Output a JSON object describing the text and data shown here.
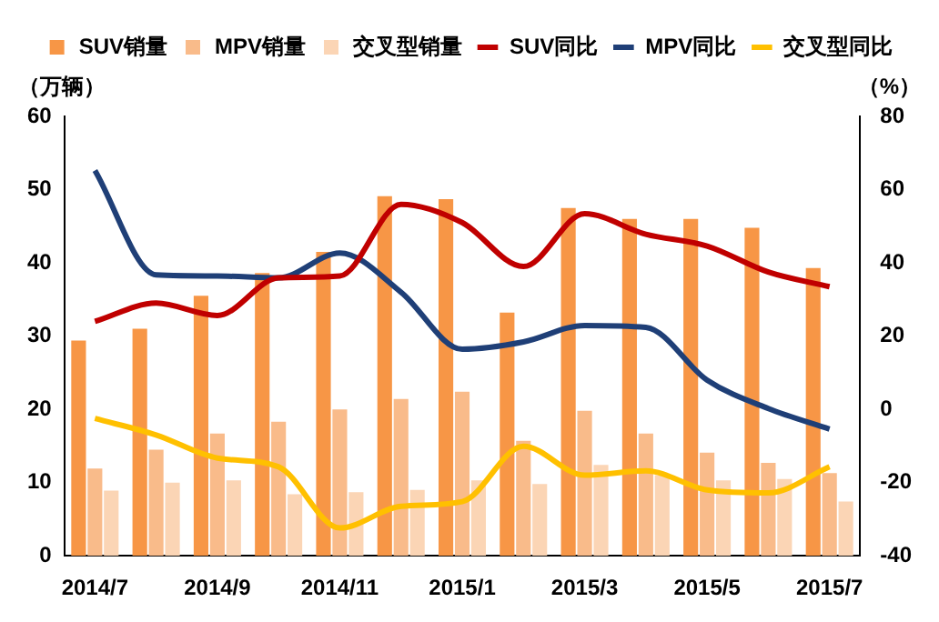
{
  "chart_data": {
    "type": "bar",
    "ylabel": "（万辆）",
    "y2label": "（%）",
    "categories": [
      "2014/7",
      null,
      "2014/9",
      null,
      "2014/11",
      null,
      "2015/1",
      null,
      "2015/3",
      null,
      "2015/5",
      null,
      "2015/7"
    ],
    "series": [
      {
        "name": "SUV销量",
        "color": "#f79646",
        "values": [
          29.4,
          31,
          35.5,
          38.6,
          41.5,
          49.1,
          48.7,
          33.2,
          47.5,
          46,
          46,
          44.8,
          39.3
        ]
      },
      {
        "name": "MPV销量",
        "color": "#f9bb8a",
        "values": [
          11.9,
          14.5,
          16.7,
          18.3,
          20,
          21.4,
          22.4,
          15.7,
          19.8,
          16.7,
          14.1,
          12.7,
          11.3
        ]
      },
      {
        "name": "交叉型销量",
        "color": "#fbd5b5",
        "values": [
          8.9,
          10,
          10.3,
          8.4,
          8.7,
          9,
          10.3,
          9.8,
          12.4,
          11,
          10.3,
          10.5,
          7.4
        ]
      },
      {
        "name": "SUV同比",
        "type": "line",
        "axis": "y2",
        "color": "#c00000",
        "values": [
          24,
          29,
          25.6,
          35.9,
          36.4,
          56,
          51,
          39,
          53.4,
          47.8,
          44.6,
          37.5,
          33.5
        ]
      },
      {
        "name": "MPV同比",
        "type": "line",
        "axis": "y2",
        "color": "#1f3f77",
        "values": [
          65.2,
          36.7,
          36.4,
          35.9,
          42.7,
          32,
          16.4,
          18.4,
          22.9,
          22.4,
          8,
          0.2,
          -5.4
        ]
      },
      {
        "name": "交叉型同比",
        "type": "line",
        "axis": "y2",
        "color": "#ffc000",
        "values": [
          -2.5,
          -7,
          -13.3,
          -15.7,
          -32.4,
          -26.5,
          -25.2,
          -10.1,
          -18,
          -16.8,
          -22,
          -22.8,
          -15.7
        ]
      }
    ],
    "ylim": [
      0,
      60
    ],
    "yticks": [
      0,
      10,
      20,
      30,
      40,
      50,
      60
    ],
    "y2lim": [
      -40,
      80
    ],
    "y2ticks": [
      -40,
      -20,
      0,
      20,
      40,
      60,
      80
    ],
    "grid": false,
    "legend": "top",
    "marker": "none"
  }
}
